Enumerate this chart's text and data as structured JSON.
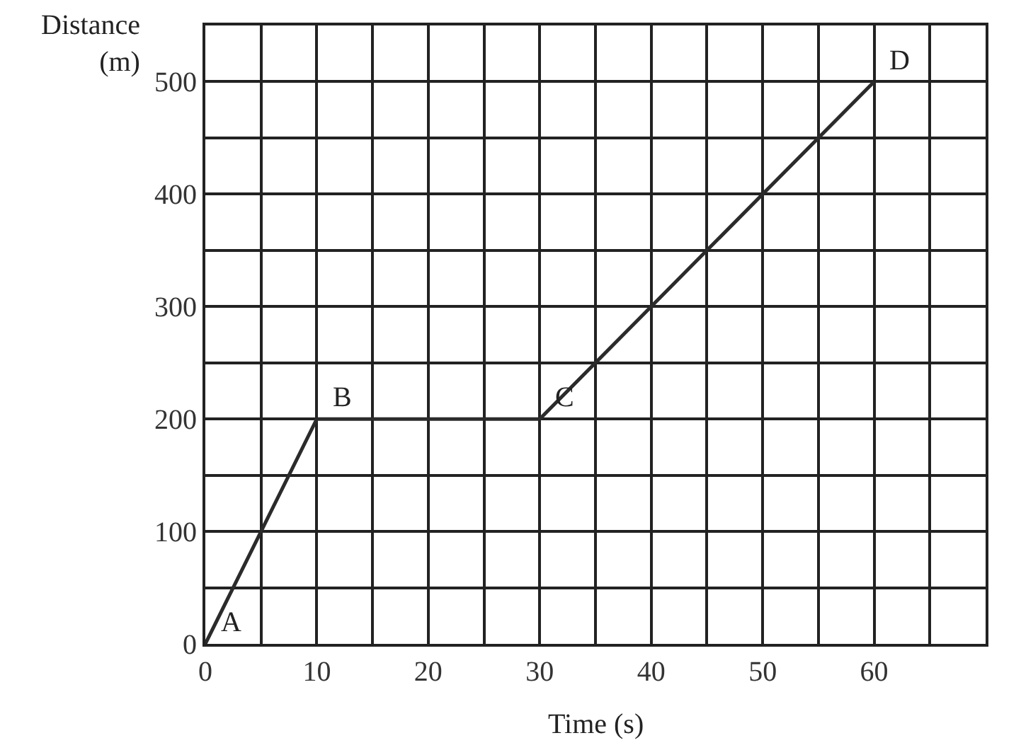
{
  "chart_data": {
    "type": "line",
    "xlabel": "Time (s)",
    "ylabel": "Distance\n(m)",
    "x": [
      0,
      10,
      30,
      60
    ],
    "series": [
      {
        "color": "#2b2b2b",
        "values": [
          0,
          200,
          200,
          500
        ]
      }
    ],
    "annotations": [
      {
        "text": "A",
        "x": 0,
        "y": 0
      },
      {
        "text": "B",
        "x": 10,
        "y": 200
      },
      {
        "text": "C",
        "x": 30,
        "y": 200
      },
      {
        "text": "D",
        "x": 60,
        "y": 500
      }
    ],
    "xlim": [
      0,
      70
    ],
    "ylim": [
      0,
      550
    ],
    "xticks": [
      0,
      {
        "value": 5,
        "label": null
      },
      10,
      {
        "value": 15,
        "label": null
      },
      20,
      {
        "value": 25,
        "label": null
      },
      30,
      {
        "value": 35,
        "label": null
      },
      40,
      {
        "value": 45,
        "label": null
      },
      50,
      {
        "value": 55,
        "label": null
      },
      60,
      {
        "value": 65,
        "label": null
      },
      {
        "value": 70,
        "label": null
      }
    ],
    "yticks": [
      0,
      {
        "value": 50,
        "label": null
      },
      100,
      {
        "value": 150,
        "label": null
      },
      200,
      {
        "value": 250,
        "label": null
      },
      300,
      {
        "value": 350,
        "label": null
      },
      400,
      {
        "value": 450,
        "label": null
      },
      500,
      {
        "value": 550,
        "label": null
      }
    ],
    "grid": true,
    "marker": "none",
    "line_style": "solid"
  }
}
